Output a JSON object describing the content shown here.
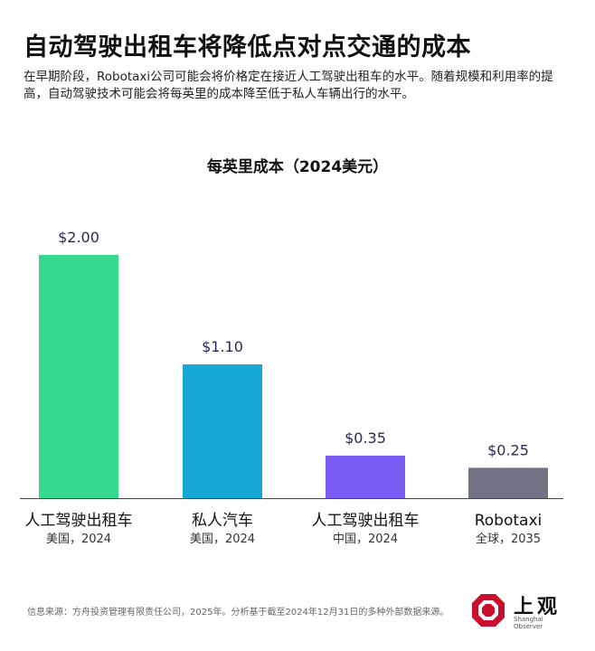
{
  "header": {
    "title": "自动驾驶出租车将降低点对点交通的成本",
    "subtitle": "在早期阶段，Robotaxi公司可能会将价格定在接近人工驾驶出租车的水平。随着规模和利用率的提高，自动驾驶技术可能会将每英里的成本降至低于私人车辆出行的水平。"
  },
  "chart_data": {
    "type": "bar",
    "title": "每英里成本（2024美元）",
    "categories": [
      "人工驾驶出租车",
      "私人汽车",
      "人工驾驶出租车",
      "Robotaxi"
    ],
    "category_sublabels": [
      "美国，2024",
      "美国，2024",
      "中国，2024",
      "全球，2035"
    ],
    "values": [
      2.0,
      1.1,
      0.35,
      0.25
    ],
    "value_labels": [
      "$2.00",
      "$1.10",
      "$0.35",
      "$0.25"
    ],
    "colors": [
      "#36d98f",
      "#17a9d6",
      "#7b5cf5",
      "#727384"
    ],
    "ylim": [
      0,
      2.2
    ],
    "grid": false,
    "value_label_color": "#2a2a5a"
  },
  "footer": {
    "source": "信息来源：方舟投资管理有限责任公司，2025年。分析基于截至2024年12月31日的多种外部数据来源。"
  },
  "logo": {
    "name": "上观",
    "sub": "Shanghai Observer",
    "color": "#c8102e"
  }
}
